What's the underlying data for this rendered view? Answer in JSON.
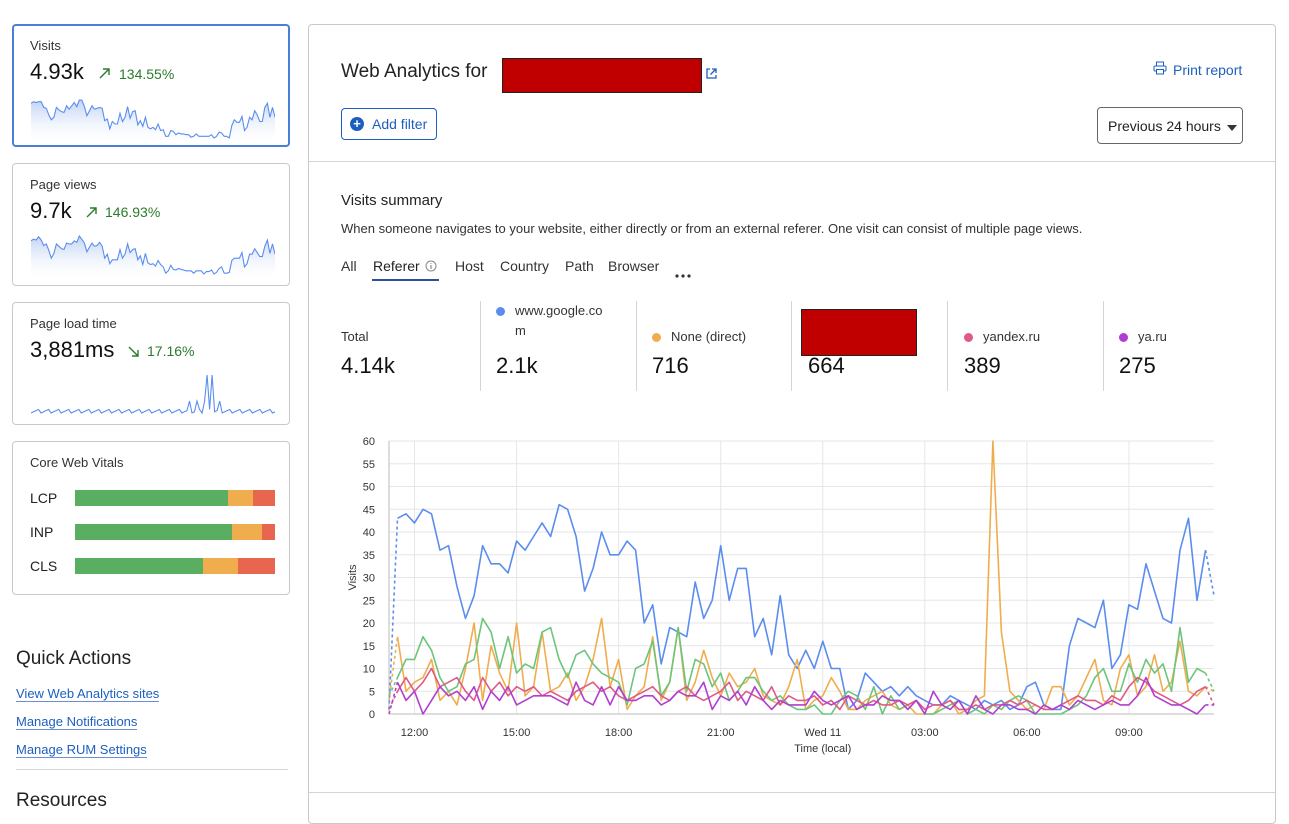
{
  "sidebar": {
    "visits": {
      "label": "Visits",
      "value": "4.93k",
      "change": "134.55%",
      "trend": "up"
    },
    "pageviews": {
      "label": "Page views",
      "value": "9.7k",
      "change": "146.93%",
      "trend": "up"
    },
    "loadtime": {
      "label": "Page load time",
      "value": "3,881ms",
      "change": "17.16%",
      "trend": "down"
    },
    "cwv": {
      "label": "Core Web Vitals",
      "rows": [
        {
          "name": "LCP",
          "good": 0.765,
          "improve": 0.125,
          "poor": 0.11
        },
        {
          "name": "INP",
          "good": 0.785,
          "improve": 0.15,
          "poor": 0.065
        },
        {
          "name": "CLS",
          "good": 0.64,
          "improve": 0.175,
          "poor": 0.185
        }
      ]
    },
    "quick_actions": {
      "title": "Quick Actions",
      "links": [
        "View Web Analytics sites",
        "Manage Notifications",
        "Manage RUM Settings"
      ]
    },
    "resources_title": "Resources"
  },
  "main": {
    "title": "Web Analytics for",
    "print_label": "Print report",
    "add_filter": "Add filter",
    "time_range": "Previous 24 hours",
    "summary_title": "Visits summary",
    "summary_desc": "When someone navigates to your website, either directly or from an external referer. One visit can consist of multiple page views.",
    "tabs": [
      "All",
      "Referer",
      "Host",
      "Country",
      "Path",
      "Browser"
    ],
    "active_tab": "Referer",
    "stats": [
      {
        "label": "Total",
        "value": "4.14k"
      },
      {
        "label": "www.google.co m",
        "value": "2.1k",
        "color": "#5b8def"
      },
      {
        "label": "None (direct)",
        "value": "716",
        "color": "#f0ad4e"
      },
      {
        "label": "",
        "value": "664"
      },
      {
        "label": "yandex.ru",
        "value": "389",
        "color": "#e05a86"
      },
      {
        "label": "ya.ru",
        "value": "275",
        "color": "#b03fd1"
      }
    ]
  },
  "chart_data": {
    "type": "line",
    "ylabel": "Visits",
    "xlabel": "Time (local)",
    "ylim": [
      0,
      60
    ],
    "yticks": [
      0,
      5,
      10,
      15,
      20,
      25,
      30,
      35,
      40,
      45,
      50,
      55,
      60
    ],
    "xticks": [
      "12:00",
      "15:00",
      "18:00",
      "21:00",
      "Wed 11",
      "03:00",
      "06:00",
      "09:00"
    ],
    "x_range_hours": [
      11.25,
      35.5
    ],
    "grid": true,
    "series": [
      {
        "name": "www.google.com",
        "color": "#5b8def",
        "values": [
          1,
          43,
          44,
          42,
          45,
          44,
          36,
          37,
          28,
          21,
          26,
          37,
          33,
          33,
          31,
          38,
          36,
          39,
          42,
          39,
          46,
          45,
          39,
          27,
          32,
          40,
          35,
          35,
          38,
          36,
          20,
          24,
          11,
          19,
          18,
          17,
          29,
          21,
          25,
          37,
          25,
          32,
          32,
          17,
          21,
          13,
          26,
          13,
          10,
          14,
          10,
          16,
          10,
          10,
          1,
          3,
          9,
          7,
          5,
          6,
          4,
          6,
          4,
          3,
          2,
          2,
          4,
          3,
          2,
          1,
          3,
          2,
          3,
          1,
          2,
          6,
          7,
          2,
          1,
          1,
          15,
          21,
          20,
          19,
          25,
          10,
          13,
          24,
          23,
          33,
          27,
          21,
          20,
          36,
          43,
          25,
          36,
          26
        ]
      },
      {
        "name": "None (direct)",
        "color": "#f0ad4e",
        "values": [
          3,
          17,
          5,
          7,
          8,
          12,
          3,
          5,
          2,
          10,
          20,
          3,
          15,
          9,
          5,
          20,
          4,
          6,
          18,
          5,
          6,
          9,
          3,
          6,
          12,
          21,
          6,
          12,
          1,
          4,
          6,
          17,
          3,
          7,
          19,
          3,
          7,
          14,
          8,
          4,
          9,
          6,
          7,
          10,
          4,
          3,
          2,
          6,
          12,
          1,
          3,
          4,
          8,
          5,
          1,
          1,
          3,
          4,
          5,
          2,
          1,
          2,
          0,
          0,
          0,
          2,
          3,
          0,
          1,
          3,
          4,
          60,
          18,
          5,
          3,
          1,
          2,
          1,
          6,
          6,
          2,
          4,
          8,
          12,
          3,
          2,
          10,
          13,
          4,
          6,
          13,
          5,
          7,
          16,
          5,
          4,
          6,
          5
        ]
      },
      {
        "name": "[redacted]",
        "color": "#6cc57a",
        "values": [
          4,
          8,
          12,
          12,
          17,
          14,
          8,
          5,
          6,
          11,
          12,
          21,
          18,
          10,
          17,
          9,
          11,
          10,
          18,
          19,
          12,
          8,
          13,
          14,
          11,
          9,
          8,
          7,
          2,
          10,
          11,
          16,
          4,
          7,
          19,
          5,
          12,
          11,
          6,
          9,
          3,
          5,
          8,
          8,
          5,
          3,
          4,
          2,
          1,
          1,
          2,
          0,
          0,
          3,
          5,
          4,
          1,
          6,
          0,
          4,
          1,
          2,
          3,
          0,
          0,
          1,
          2,
          3,
          0,
          1,
          0,
          2,
          1,
          3,
          4,
          3,
          0,
          0,
          0,
          0,
          1,
          2,
          4,
          8,
          10,
          5,
          5,
          11,
          7,
          12,
          9,
          11,
          5,
          19,
          7,
          10,
          9,
          5
        ]
      },
      {
        "name": "yandex.ru",
        "color": "#e05a86",
        "values": [
          1,
          5,
          8,
          5,
          7,
          10,
          6,
          7,
          8,
          5,
          3,
          8,
          5,
          7,
          4,
          6,
          5,
          6,
          4,
          5,
          4,
          3,
          5,
          6,
          7,
          5,
          6,
          4,
          3,
          4,
          5,
          6,
          4,
          3,
          5,
          6,
          4,
          3,
          4,
          5,
          7,
          3,
          5,
          4,
          3,
          6,
          2,
          4,
          3,
          3,
          4,
          2,
          3,
          1,
          4,
          3,
          2,
          3,
          2,
          2,
          3,
          2,
          3,
          1,
          2,
          2,
          3,
          1,
          1,
          2,
          1,
          2,
          2,
          3,
          2,
          3,
          2,
          1,
          1,
          2,
          3,
          4,
          3,
          3,
          2,
          4,
          3,
          6,
          8,
          7,
          5,
          4,
          3,
          2,
          3,
          5,
          6,
          2
        ]
      },
      {
        "name": "ya.ru",
        "color": "#b03fd1",
        "values": [
          0,
          7,
          3,
          5,
          0,
          3,
          6,
          4,
          5,
          3,
          6,
          1,
          5,
          3,
          6,
          2,
          3,
          4,
          4,
          4,
          3,
          2,
          7,
          3,
          2,
          6,
          2,
          6,
          3,
          3,
          4,
          4,
          2,
          3,
          5,
          4,
          4,
          7,
          1,
          4,
          3,
          5,
          2,
          6,
          3,
          1,
          3,
          2,
          2,
          2,
          5,
          3,
          2,
          3,
          4,
          1,
          2,
          2,
          4,
          3,
          3,
          1,
          3,
          0,
          5,
          2,
          1,
          3,
          0,
          4,
          1,
          0,
          2,
          2,
          1,
          1,
          0,
          2,
          1,
          2,
          1,
          3,
          2,
          1,
          2,
          3,
          2,
          2,
          4,
          8,
          4,
          3,
          2,
          2,
          1,
          0,
          2,
          2
        ]
      }
    ]
  }
}
